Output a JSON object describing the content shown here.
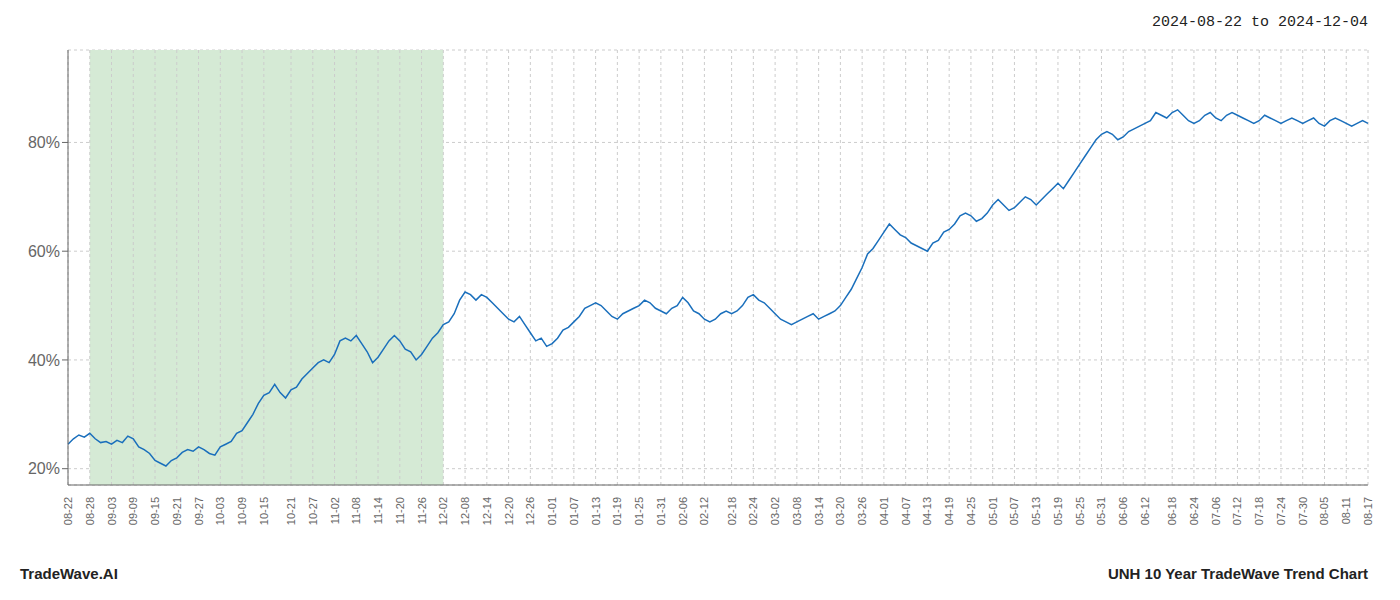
{
  "chart_data": {
    "type": "line",
    "title": "2024-08-22 to 2024-12-04",
    "annotations": [
      "TradeWave.AI",
      "UNH 10 Year TradeWave Trend Chart"
    ],
    "categories": [
      "08-22",
      null,
      null,
      null,
      "08-28",
      null,
      null,
      null,
      "09-03",
      null,
      null,
      null,
      "09-09",
      null,
      null,
      null,
      "09-15",
      null,
      null,
      null,
      "09-21",
      null,
      null,
      null,
      "09-27",
      null,
      null,
      null,
      "10-03",
      null,
      null,
      null,
      "10-09",
      null,
      null,
      null,
      "10-15",
      null,
      null,
      null,
      null,
      "10-21",
      null,
      null,
      null,
      "10-27",
      null,
      null,
      null,
      "11-02",
      null,
      null,
      null,
      "11-08",
      null,
      null,
      null,
      "11-14",
      null,
      null,
      null,
      "11-20",
      null,
      null,
      null,
      "11-26",
      null,
      null,
      null,
      "12-02",
      null,
      null,
      null,
      "12-08",
      null,
      null,
      null,
      "12-14",
      null,
      null,
      null,
      "12-20",
      null,
      null,
      null,
      "12-26",
      null,
      null,
      null,
      "01-01",
      null,
      null,
      null,
      "01-07",
      null,
      null,
      null,
      "01-13",
      null,
      null,
      null,
      "01-19",
      null,
      null,
      null,
      "01-25",
      null,
      null,
      null,
      "01-31",
      null,
      null,
      null,
      "02-06",
      null,
      null,
      null,
      "02-12",
      null,
      null,
      null,
      null,
      "02-18",
      null,
      null,
      null,
      "02-24",
      null,
      null,
      null,
      "03-02",
      null,
      null,
      null,
      "03-08",
      null,
      null,
      null,
      "03-14",
      null,
      null,
      null,
      "03-20",
      null,
      null,
      null,
      "03-26",
      null,
      null,
      null,
      "04-01",
      null,
      null,
      null,
      "04-07",
      null,
      null,
      null,
      "04-13",
      null,
      null,
      null,
      "04-19",
      null,
      null,
      null,
      "04-25",
      null,
      null,
      null,
      "05-01",
      null,
      null,
      null,
      "05-07",
      null,
      null,
      null,
      "05-13",
      null,
      null,
      null,
      "05-19",
      null,
      null,
      null,
      "05-25",
      null,
      null,
      null,
      "05-31",
      null,
      null,
      null,
      "06-06",
      null,
      null,
      null,
      "06-12",
      null,
      null,
      null,
      null,
      "06-18",
      null,
      null,
      null,
      "06-24",
      null,
      null,
      null,
      "07-06",
      null,
      null,
      null,
      "07-12",
      null,
      null,
      null,
      "07-18",
      null,
      null,
      null,
      "07-24",
      null,
      null,
      null,
      "07-30",
      null,
      null,
      null,
      "08-05",
      null,
      null,
      null,
      "08-11",
      null,
      null,
      null,
      "08-17"
    ],
    "values": [
      24.5,
      25.5,
      26.2,
      25.8,
      26.5,
      25.5,
      24.8,
      25.0,
      24.5,
      25.2,
      24.8,
      26.0,
      25.5,
      24.0,
      23.5,
      22.8,
      21.5,
      21.0,
      20.5,
      21.5,
      22.0,
      23.0,
      23.5,
      23.2,
      24.0,
      23.5,
      22.8,
      22.5,
      24.0,
      24.5,
      25.0,
      26.5,
      27.0,
      28.5,
      30.0,
      32.0,
      33.5,
      34.0,
      35.5,
      34.0,
      33.0,
      34.5,
      35.0,
      36.5,
      37.5,
      38.5,
      39.5,
      40.0,
      39.5,
      41.0,
      43.5,
      44.0,
      43.5,
      44.5,
      43.0,
      41.5,
      39.5,
      40.5,
      42.0,
      43.5,
      44.5,
      43.5,
      42.0,
      41.5,
      40.0,
      41.0,
      42.5,
      44.0,
      45.0,
      46.5,
      47.0,
      48.5,
      51.0,
      52.5,
      52.0,
      51.0,
      52.0,
      51.5,
      50.5,
      49.5,
      48.5,
      47.5,
      47.0,
      48.0,
      46.5,
      45.0,
      43.5,
      44.0,
      42.5,
      43.0,
      44.0,
      45.5,
      46.0,
      47.0,
      48.0,
      49.5,
      50.0,
      50.5,
      50.0,
      49.0,
      48.0,
      47.5,
      48.5,
      49.0,
      49.5,
      50.0,
      51.0,
      50.5,
      49.5,
      49.0,
      48.5,
      49.5,
      50.0,
      51.5,
      50.5,
      49.0,
      48.5,
      47.5,
      47.0,
      47.5,
      48.5,
      49.0,
      48.5,
      49.0,
      50.0,
      51.5,
      52.0,
      51.0,
      50.5,
      49.5,
      48.5,
      47.5,
      47.0,
      46.5,
      47.0,
      47.5,
      48.0,
      48.5,
      47.5,
      48.0,
      48.5,
      49.0,
      50.0,
      51.5,
      53.0,
      55.0,
      57.0,
      59.5,
      60.5,
      62.0,
      63.5,
      65.0,
      64.0,
      63.0,
      62.5,
      61.5,
      61.0,
      60.5,
      60.0,
      61.5,
      62.0,
      63.5,
      64.0,
      65.0,
      66.5,
      67.0,
      66.5,
      65.5,
      66.0,
      67.0,
      68.5,
      69.5,
      68.5,
      67.5,
      68.0,
      69.0,
      70.0,
      69.5,
      68.5,
      69.5,
      70.5,
      71.5,
      72.5,
      71.5,
      73.0,
      74.5,
      76.0,
      77.5,
      79.0,
      80.5,
      81.5,
      82.0,
      81.5,
      80.5,
      81.0,
      82.0,
      82.5,
      83.0,
      83.5,
      84.0,
      85.5,
      85.0,
      84.5,
      85.5,
      86.0,
      85.0,
      84.0,
      83.5,
      84.0,
      85.0,
      85.5,
      84.5,
      84.0,
      85.0,
      85.5,
      85.0,
      84.5,
      84.0,
      83.5,
      84.0,
      85.0,
      84.5,
      84.0,
      83.5,
      84.0,
      84.5,
      84.0,
      83.5,
      84.0,
      84.5,
      83.5,
      83.0,
      84.0,
      84.5,
      84.0,
      83.5,
      83.0,
      83.5,
      84.0,
      83.5
    ],
    "color": "#1a6fbc",
    "ylim": [
      17,
      97
    ],
    "yticks": [
      {
        "value": 20,
        "label": "20%"
      },
      {
        "value": 40,
        "label": "40%"
      },
      {
        "value": 60,
        "label": "60%"
      },
      {
        "value": 80,
        "label": "80%"
      }
    ],
    "grid": true,
    "shaded_range": {
      "from": "08-28",
      "to": "12-02",
      "color": "#d5ead5"
    }
  }
}
